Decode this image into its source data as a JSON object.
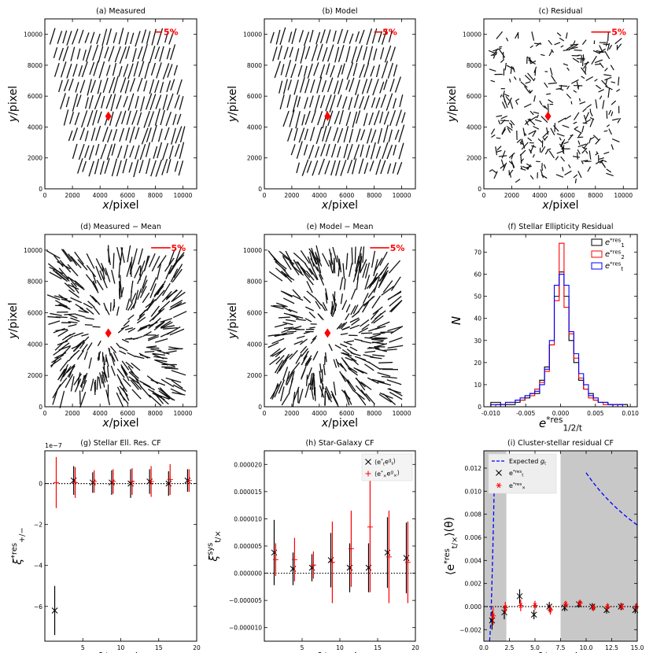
{
  "figure": "3x3 panel figure: PSF ellipticity whisker maps, histogram and correlation functions",
  "chart_data": [
    {
      "id": "a",
      "type": "scatter",
      "title": "(a) Measured",
      "xlabel": "x/pixel",
      "ylabel": "y/pixel",
      "xlim": [
        0,
        11000
      ],
      "ylim": [
        0,
        11000
      ],
      "xticks": [
        "0",
        "2000",
        "4000",
        "6000",
        "8000",
        "10000"
      ],
      "yticks": [
        "0",
        "2000",
        "4000",
        "6000",
        "8000",
        "10000"
      ],
      "scale_label": "5%",
      "center": [
        4600,
        4700
      ],
      "whiskers": {
        "mode": "measured"
      }
    },
    {
      "id": "b",
      "type": "scatter",
      "title": "(b) Model",
      "xlabel": "x/pixel",
      "ylabel": "y/pixel",
      "xlim": [
        0,
        11000
      ],
      "ylim": [
        0,
        11000
      ],
      "xticks": [
        "0",
        "2000",
        "4000",
        "6000",
        "8000",
        "10000"
      ],
      "yticks": [
        "0",
        "2000",
        "4000",
        "6000",
        "8000",
        "10000"
      ],
      "scale_label": "5%",
      "center": [
        4600,
        4700
      ],
      "whiskers": {
        "mode": "model"
      }
    },
    {
      "id": "c",
      "type": "scatter",
      "title": "(c) Residual",
      "xlabel": "x/pixel",
      "ylabel": "y/pixel",
      "xlim": [
        0,
        11000
      ],
      "ylim": [
        0,
        11000
      ],
      "xticks": [
        "0",
        "2000",
        "4000",
        "6000",
        "8000",
        "10000"
      ],
      "yticks": [
        "0",
        "2000",
        "4000",
        "6000",
        "8000",
        "10000"
      ],
      "scale_label": "5%",
      "center": [
        4600,
        4700
      ],
      "whiskers": {
        "mode": "residual"
      }
    },
    {
      "id": "d",
      "type": "scatter",
      "title": "(d) Measured − Mean",
      "xlabel": "x/pixel",
      "ylabel": "y/pixel",
      "xlim": [
        0,
        11000
      ],
      "ylim": [
        0,
        11000
      ],
      "xticks": [
        "0",
        "2000",
        "4000",
        "6000",
        "8000",
        "10000"
      ],
      "yticks": [
        "0",
        "2000",
        "4000",
        "6000",
        "8000",
        "10000"
      ],
      "scale_label": "5%",
      "center": [
        4600,
        4700
      ],
      "whiskers": {
        "mode": "meansub"
      }
    },
    {
      "id": "e",
      "type": "scatter",
      "title": "(e) Model − Mean",
      "xlabel": "x/pixel",
      "ylabel": "y/pixel",
      "xlim": [
        0,
        11000
      ],
      "ylim": [
        0,
        11000
      ],
      "xticks": [
        "0",
        "2000",
        "4000",
        "6000",
        "8000",
        "10000"
      ],
      "yticks": [
        "0",
        "2000",
        "4000",
        "6000",
        "8000",
        "10000"
      ],
      "scale_label": "5%",
      "center": [
        4600,
        4700
      ],
      "whiskers": {
        "mode": "meansub"
      }
    },
    {
      "id": "f",
      "type": "histogram",
      "title": "(f) Stellar Ellipticity Residual",
      "xlabel": "e*res 1/2/t",
      "ylabel": "N",
      "xlim": [
        -0.011,
        0.011
      ],
      "ylim": [
        0,
        78
      ],
      "xticks": [
        "-0.010",
        "-0.005",
        "0.000",
        "0.005",
        "0.010"
      ],
      "yticks": [
        "0",
        "10",
        "20",
        "30",
        "40",
        "50",
        "60",
        "70"
      ],
      "bin_edges": [
        -0.01,
        -0.0093,
        -0.0086,
        -0.0079,
        -0.0072,
        -0.0065,
        -0.0058,
        -0.0051,
        -0.0044,
        -0.0037,
        -0.003,
        -0.0023,
        -0.0016,
        -0.0009,
        -0.0002,
        0.0005,
        0.0012,
        0.0019,
        0.0026,
        0.0033,
        0.004,
        0.0047,
        0.0054,
        0.0061,
        0.0068,
        0.0075,
        0.0082,
        0.0089,
        0.0096
      ],
      "series": [
        {
          "name": "e1*res",
          "color": "#000000",
          "values": [
            2,
            2,
            0,
            1,
            1,
            2,
            3,
            4,
            6,
            6,
            12,
            18,
            28,
            50,
            61,
            50,
            30,
            20,
            12,
            8,
            6,
            3,
            2,
            2,
            1,
            0,
            1,
            1
          ]
        },
        {
          "name": "e2*res",
          "color": "#ff0000",
          "values": [
            0,
            1,
            1,
            2,
            2,
            3,
            3,
            5,
            5,
            8,
            11,
            16,
            28,
            48,
            74,
            45,
            33,
            22,
            13,
            8,
            4,
            3,
            2,
            1,
            1,
            1,
            0,
            0
          ]
        },
        {
          "name": "et*res",
          "color": "#0000ff",
          "values": [
            1,
            1,
            1,
            2,
            2,
            3,
            4,
            5,
            6,
            7,
            10,
            17,
            30,
            55,
            60,
            55,
            34,
            24,
            15,
            10,
            5,
            4,
            2,
            2,
            1,
            1,
            1,
            0
          ]
        }
      ]
    },
    {
      "id": "g",
      "type": "scatter",
      "title": "(g) Stellar Ell. Res. CF",
      "xlabel": "θ/arcmin",
      "ylabel": "ξ*res +/−",
      "xlim": [
        0,
        20
      ],
      "ylim": [
        -7.7,
        1.6
      ],
      "exponent_label": "1e−7",
      "xticks": [
        "5",
        "10",
        "15",
        "20"
      ],
      "yticks": [
        "−6",
        "−4",
        "−2",
        "0"
      ],
      "series": [
        {
          "name": "xi_plus",
          "color": "#000000",
          "marker": "x",
          "x": [
            1.3,
            3.8,
            6.3,
            8.8,
            11.3,
            13.8,
            16.3,
            18.8
          ],
          "y": [
            -6.2,
            0.15,
            0.05,
            0.05,
            0.0,
            0.1,
            0.0,
            0.15
          ],
          "err": [
            1.2,
            0.7,
            0.5,
            0.6,
            0.7,
            0.6,
            0.6,
            0.55
          ]
        },
        {
          "name": "xi_minus",
          "color": "#ff0000",
          "marker": "+",
          "x": [
            1.5,
            4.0,
            6.5,
            9.0,
            11.5,
            14.0,
            16.5,
            19.0
          ],
          "y": [
            0.05,
            0.05,
            0.1,
            0.1,
            0.1,
            0.1,
            0.2,
            0.15
          ],
          "err": [
            1.25,
            0.75,
            0.55,
            0.6,
            0.65,
            0.75,
            0.75,
            0.55
          ]
        }
      ]
    },
    {
      "id": "h",
      "type": "scatter",
      "title": "(h) Star-Galaxy CF",
      "xlabel": "θ/arcmin",
      "ylabel": "ξ sys t/×",
      "xlim": [
        0,
        20
      ],
      "ylim": [
        -1.25e-05,
        2.25e-05
      ],
      "xticks": [
        "5",
        "10",
        "15",
        "20"
      ],
      "yticks": [
        "−0.000010",
        "−0.000005",
        "0.000000",
        "0.000005",
        "0.000010",
        "0.000015",
        "0.000020"
      ],
      "legend": [
        "⟨e*t eg t⟩",
        "⟨e*× eg ×⟩"
      ],
      "series": [
        {
          "name": "tt",
          "color": "#000000",
          "marker": "x",
          "x": [
            1.3,
            3.8,
            6.3,
            8.8,
            11.3,
            13.8,
            16.3,
            18.8
          ],
          "y": [
            3.8e-06,
            8e-07,
            1e-06,
            2.4e-06,
            1e-06,
            1e-06,
            3.8e-06,
            2.8e-06
          ],
          "err": [
            6e-06,
            3e-06,
            2.5e-06,
            5e-06,
            4.5e-06,
            4.5e-06,
            6.5e-06,
            6.5e-06
          ]
        },
        {
          "name": "xx",
          "color": "#ff0000",
          "marker": "+",
          "x": [
            1.5,
            4.0,
            6.5,
            9.0,
            11.5,
            14.0,
            16.5,
            19.0
          ],
          "y": [
            2.5e-06,
            2.5e-06,
            1.5e-06,
            2e-06,
            4.5e-06,
            8.5e-06,
            3e-06,
            2e-06
          ],
          "err": [
            3e-06,
            4e-06,
            2.5e-06,
            7.5e-06,
            7e-06,
            1.2e-05,
            8.5e-06,
            7.5e-06
          ]
        }
      ]
    },
    {
      "id": "i",
      "type": "scatter",
      "title": "(i) Cluster-stellar residual CF",
      "xlabel": "θ/arcmin",
      "ylabel": "⟨e*res t/×⟩(θ)",
      "xlim": [
        0,
        15
      ],
      "ylim": [
        -0.003,
        0.0135
      ],
      "xticks": [
        "0.0",
        "2.5",
        "5.0",
        "7.5",
        "10.0",
        "12.5",
        "15.0"
      ],
      "yticks": [
        "−0.002",
        "0.000",
        "0.002",
        "0.004",
        "0.006",
        "0.008",
        "0.010",
        "0.012"
      ],
      "shaded": [
        [
          0.0,
          2.2
        ],
        [
          7.5,
          15.0
        ]
      ],
      "legend": [
        "Expected g t",
        "e*res t",
        "e*res ×"
      ],
      "expected_gt": {
        "amplitude": 0.118,
        "power": 1.0,
        "color": "#0000ff"
      },
      "series": [
        {
          "name": "et",
          "color": "#000000",
          "marker": "x",
          "x": [
            0.8,
            2.0,
            3.5,
            4.9,
            6.4,
            7.9,
            9.3,
            10.6,
            12.0,
            13.4,
            14.8
          ],
          "y": [
            -0.0012,
            -0.0005,
            0.0009,
            -0.0007,
            0.0,
            -0.0001,
            0.0002,
            0.0,
            -0.0003,
            0.0,
            -0.0003
          ],
          "err": [
            0.0008,
            0.0006,
            0.0006,
            0.0004,
            0.0004,
            0.0003,
            0.0003,
            0.0003,
            0.0003,
            0.0003,
            0.0003
          ]
        },
        {
          "name": "ex",
          "color": "#ff0000",
          "marker": "*",
          "x": [
            0.9,
            2.1,
            3.6,
            5.0,
            6.5,
            8.0,
            9.4,
            10.7,
            12.1,
            13.5,
            14.9
          ],
          "y": [
            -0.0008,
            -0.0001,
            0.0001,
            0.0001,
            -0.0003,
            0.0002,
            0.0003,
            -0.0001,
            0.0,
            0.0,
            0.0
          ],
          "err": [
            0.0008,
            0.0005,
            0.0005,
            0.0004,
            0.0004,
            0.0003,
            0.0003,
            0.0003,
            0.0003,
            0.0003,
            0.0003
          ]
        }
      ]
    }
  ]
}
